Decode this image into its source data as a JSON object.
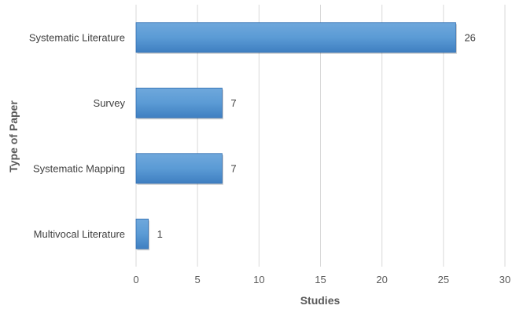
{
  "chart_data": {
    "type": "bar",
    "orientation": "horizontal",
    "categories": [
      "Systematic Literature",
      "Survey",
      "Systematic Mapping",
      "Multivocal Literature"
    ],
    "values": [
      26,
      7,
      7,
      1
    ],
    "data_labels": [
      "26",
      "7",
      "7",
      "1"
    ],
    "title": "",
    "xlabel": "Studies",
    "ylabel": "Type of Paper",
    "xlim": [
      0,
      30
    ],
    "xticks": [
      0,
      5,
      10,
      15,
      20,
      25,
      30
    ],
    "grid": "vertical",
    "legend": "none",
    "colors": {
      "bar": "#5b9bd5",
      "bar_top": "#6fa8dc",
      "bar_bottom": "#3f7fc1",
      "bar_edge": "#2f6db0",
      "grid": "#d9d9d9"
    }
  }
}
